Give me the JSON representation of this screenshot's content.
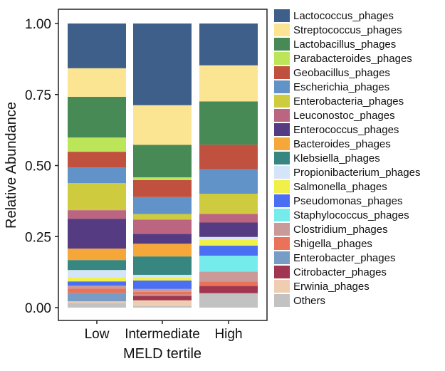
{
  "chart_data": {
    "type": "bar",
    "stacked": true,
    "categories": [
      "Low",
      "Intermediate",
      "High"
    ],
    "xlabel": "MELD tertile",
    "ylabel": "Relative Abundance",
    "ylim": [
      0,
      1
    ],
    "yticks": [
      "0.00",
      "0.25",
      "0.50",
      "0.75",
      "1.00"
    ],
    "grid": false,
    "legend_position": "right",
    "series": [
      {
        "name": "Lactococcus_phages",
        "color": "#3E5F8A",
        "values": [
          0.157,
          0.289,
          0.145
        ]
      },
      {
        "name": "Streptococcus_phages",
        "color": "#FBE593",
        "values": [
          0.1,
          0.14,
          0.125
        ]
      },
      {
        "name": "Lactobacillus_phages",
        "color": "#478A55",
        "values": [
          0.143,
          0.115,
          0.15
        ]
      },
      {
        "name": "Parabacteroides_phages",
        "color": "#BDE55A",
        "values": [
          0.05,
          0.01,
          0.0
        ]
      },
      {
        "name": "Geobacillus_phages",
        "color": "#C1513F",
        "values": [
          0.055,
          0.06,
          0.085
        ]
      },
      {
        "name": "Escherichia_phages",
        "color": "#6193C8",
        "values": [
          0.055,
          0.06,
          0.085
        ]
      },
      {
        "name": "Enterobacteria_phages",
        "color": "#CFCB3F",
        "values": [
          0.095,
          0.02,
          0.07
        ]
      },
      {
        "name": "Leuconostoc_phages",
        "color": "#BC6580",
        "values": [
          0.03,
          0.05,
          0.03
        ]
      },
      {
        "name": "Enterococcus_phages",
        "color": "#553C82",
        "values": [
          0.105,
          0.035,
          0.05
        ]
      },
      {
        "name": "Bacteroides_phages",
        "color": "#F5A73A",
        "values": [
          0.04,
          0.045,
          0.0
        ]
      },
      {
        "name": "Klebsiella_phages",
        "color": "#388680",
        "values": [
          0.035,
          0.065,
          0.0
        ]
      },
      {
        "name": "Propionibacterium_phages",
        "color": "#D4E5F9",
        "values": [
          0.025,
          0.01,
          0.01
        ]
      },
      {
        "name": "Salmonella_phages",
        "color": "#F1EF49",
        "values": [
          0.015,
          0.01,
          0.02
        ]
      },
      {
        "name": "Pseudomonas_phages",
        "color": "#4B6FF2",
        "values": [
          0.015,
          0.03,
          0.035
        ]
      },
      {
        "name": "Staphylococcus_phages",
        "color": "#76EBEC",
        "values": [
          0.0,
          0.0,
          0.055
        ]
      },
      {
        "name": "Clostridium_phages",
        "color": "#C99A98",
        "values": [
          0.01,
          0.01,
          0.035
        ]
      },
      {
        "name": "Shigella_phages",
        "color": "#EA7259",
        "values": [
          0.015,
          0.01,
          0.015
        ]
      },
      {
        "name": "Enterobacter_phages",
        "color": "#779CC6",
        "values": [
          0.03,
          0.005,
          0.0
        ]
      },
      {
        "name": "Citrobacter_phages",
        "color": "#A0364F",
        "values": [
          0.0,
          0.015,
          0.025
        ]
      },
      {
        "name": "Erwinia_phages",
        "color": "#EFCDB1",
        "values": [
          0.005,
          0.02,
          0.0
        ]
      },
      {
        "name": "Others",
        "color": "#C2C2C2",
        "values": [
          0.017,
          0.006,
          0.05
        ]
      }
    ]
  }
}
